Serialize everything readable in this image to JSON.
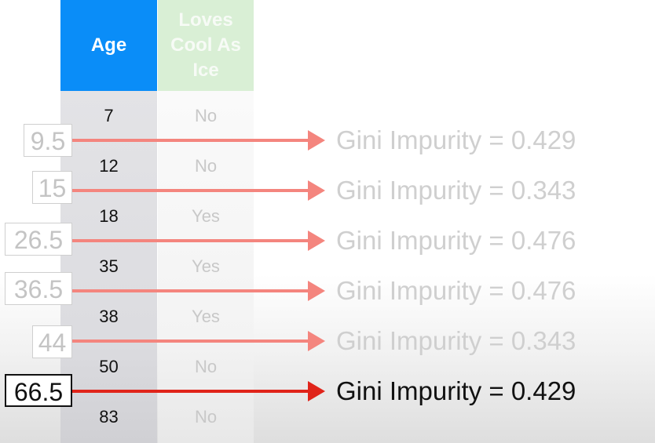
{
  "table": {
    "headers": {
      "age": "Age",
      "loves": [
        "Loves",
        "Cool As",
        "Ice"
      ]
    },
    "rows": [
      {
        "age": "7",
        "loves": "No"
      },
      {
        "age": "12",
        "loves": "No"
      },
      {
        "age": "18",
        "loves": "Yes"
      },
      {
        "age": "35",
        "loves": "Yes"
      },
      {
        "age": "38",
        "loves": "Yes"
      },
      {
        "age": "50",
        "loves": "No"
      },
      {
        "age": "83",
        "loves": "No"
      }
    ]
  },
  "thresholds": [
    {
      "value": "9.5",
      "gini": "Gini Impurity = 0.429",
      "active": false
    },
    {
      "value": "15",
      "gini": "Gini Impurity = 0.343",
      "active": false
    },
    {
      "value": "26.5",
      "gini": "Gini Impurity = 0.476",
      "active": false
    },
    {
      "value": "36.5",
      "gini": "Gini Impurity = 0.476",
      "active": false
    },
    {
      "value": "44",
      "gini": "Gini Impurity = 0.343",
      "active": false
    },
    {
      "value": "66.5",
      "gini": "Gini Impurity = 0.429",
      "active": true
    }
  ],
  "colors": {
    "age_header": "#0a8df8",
    "loves_header": "#d9efd5",
    "arrow_faded": "#f4857e",
    "arrow_active": "#e0241a"
  }
}
